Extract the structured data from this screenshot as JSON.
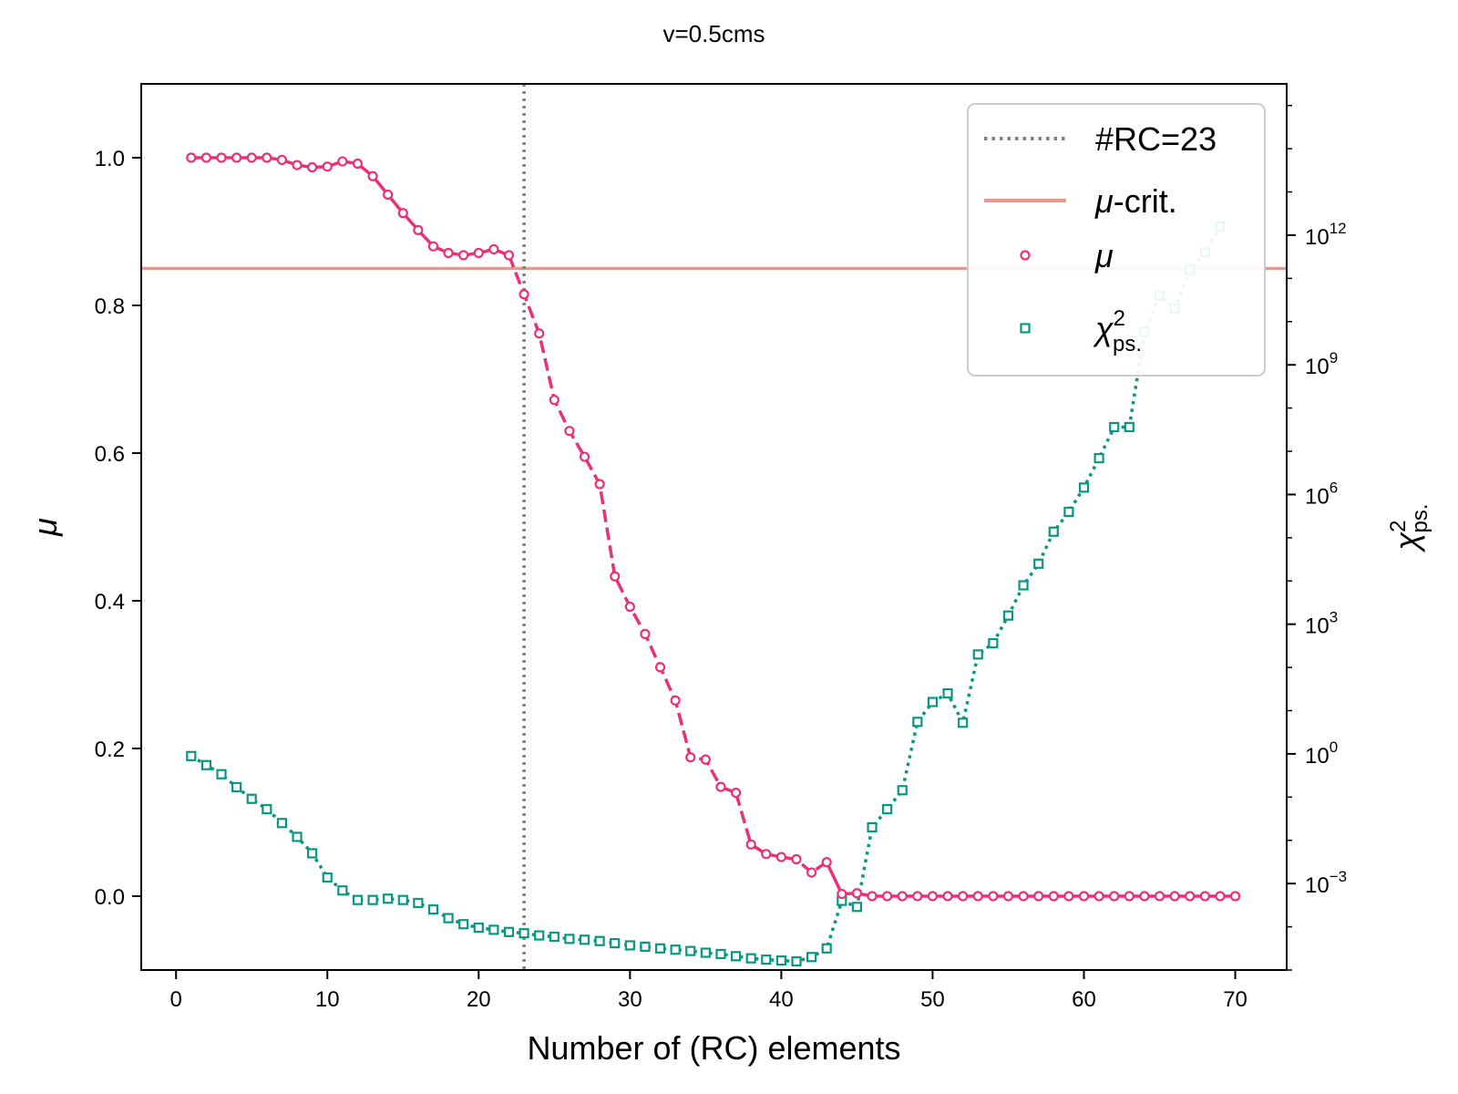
{
  "chart_data": {
    "type": "line",
    "title": "v=0.5cms",
    "xlabel": "Number of (RC) elements",
    "ylabel_left": "μ",
    "ylabel_right_base": "χ",
    "ylabel_right_sup": "2",
    "ylabel_right_sub": "ps.",
    "xlim": [
      -2.3,
      73.4
    ],
    "ylim_left": [
      -0.1,
      1.1
    ],
    "ylim_right_log10": [
      -5,
      15.5
    ],
    "right_axis_scale": "log",
    "x_ticks": [
      0,
      10,
      20,
      30,
      40,
      50,
      60,
      70
    ],
    "y_ticks_left": [
      0.0,
      0.2,
      0.4,
      0.6,
      0.8,
      1.0
    ],
    "y_ticks_right_log10": [
      -3,
      0,
      3,
      6,
      9,
      12
    ],
    "grid": false,
    "legend_position": "top-right",
    "legend": [
      {
        "label": "#RC=23",
        "style": "dotted-line",
        "color": "#808080"
      },
      {
        "label": "μ-crit.",
        "style": "solid-line",
        "color": "#e8998d"
      },
      {
        "label": "μ",
        "style": "circle-marker",
        "color": "#e8317a"
      },
      {
        "label": "χ²ps.",
        "style": "square-marker",
        "color": "#0a9684"
      }
    ],
    "vline": {
      "x": 23,
      "label": "#RC=23",
      "color": "#808080"
    },
    "hline": {
      "y": 0.85,
      "label": "μ-crit.",
      "color": "#e8998d"
    },
    "series": [
      {
        "name": "μ",
        "axis": "left",
        "color": "#e8317a",
        "marker": "circle",
        "x": [
          1,
          2,
          3,
          4,
          5,
          6,
          7,
          8,
          9,
          10,
          11,
          12,
          13,
          14,
          15,
          16,
          17,
          18,
          19,
          20,
          21,
          22,
          23,
          24,
          25,
          26,
          27,
          28,
          29,
          30,
          31,
          32,
          33,
          34,
          35,
          36,
          37,
          38,
          39,
          40,
          41,
          42,
          43,
          44,
          45,
          46,
          47,
          48,
          49,
          50,
          51,
          52,
          53,
          54,
          55,
          56,
          57,
          58,
          59,
          60,
          61,
          62,
          63,
          64,
          65,
          66,
          67,
          68,
          69,
          70
        ],
        "y": [
          1.0,
          1.0,
          1.0,
          1.0,
          1.0,
          1.0,
          0.997,
          0.99,
          0.987,
          0.988,
          0.995,
          0.992,
          0.975,
          0.95,
          0.925,
          0.902,
          0.88,
          0.871,
          0.868,
          0.871,
          0.876,
          0.868,
          0.815,
          0.762,
          0.672,
          0.63,
          0.595,
          0.558,
          0.433,
          0.392,
          0.355,
          0.31,
          0.265,
          0.188,
          0.185,
          0.148,
          0.14,
          0.07,
          0.057,
          0.053,
          0.05,
          0.032,
          0.046,
          0.003,
          0.004,
          0.0,
          0.0,
          0.0,
          0.0,
          0.0,
          0.0,
          0.0,
          0.0,
          0.0,
          0.0,
          0.0,
          0.0,
          0.0,
          0.0,
          0.0,
          0.0,
          0.0,
          0.0,
          0.0,
          0.0,
          0.0,
          0.0,
          0.0,
          0.0,
          0.0
        ]
      },
      {
        "name": "χ²ps.",
        "axis": "right",
        "color": "#0a9684",
        "marker": "square",
        "x": [
          1,
          2,
          3,
          4,
          5,
          6,
          7,
          8,
          9,
          10,
          11,
          12,
          13,
          14,
          15,
          16,
          17,
          18,
          19,
          20,
          21,
          22,
          23,
          24,
          25,
          26,
          27,
          28,
          29,
          30,
          31,
          32,
          33,
          34,
          35,
          36,
          37,
          38,
          39,
          40,
          41,
          42,
          43,
          44,
          45,
          46,
          47,
          48,
          49,
          50,
          51,
          52,
          53,
          54,
          55,
          56,
          57,
          58,
          59,
          60,
          61,
          62,
          63,
          64,
          65,
          66,
          67,
          68,
          69
        ],
        "y_log10": [
          -0.05,
          -0.26,
          -0.47,
          -0.77,
          -1.04,
          -1.28,
          -1.6,
          -1.92,
          -2.3,
          -2.86,
          -3.16,
          -3.38,
          -3.38,
          -3.35,
          -3.38,
          -3.45,
          -3.6,
          -3.8,
          -3.94,
          -4.02,
          -4.07,
          -4.12,
          -4.15,
          -4.2,
          -4.23,
          -4.28,
          -4.3,
          -4.33,
          -4.38,
          -4.43,
          -4.46,
          -4.5,
          -4.53,
          -4.56,
          -4.6,
          -4.63,
          -4.68,
          -4.73,
          -4.76,
          -4.78,
          -4.8,
          -4.7,
          -4.5,
          -3.4,
          -3.54,
          -1.7,
          -1.28,
          -0.84,
          0.74,
          1.2,
          1.4,
          0.72,
          2.3,
          2.56,
          3.2,
          3.9,
          4.4,
          5.14,
          5.6,
          6.16,
          6.84,
          7.56,
          7.56,
          9.76,
          10.6,
          10.3,
          11.2,
          11.6,
          12.2
        ]
      }
    ]
  }
}
